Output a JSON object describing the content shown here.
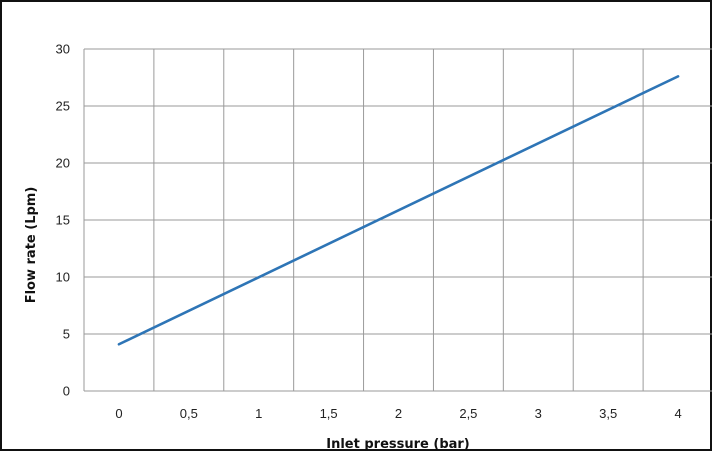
{
  "chart_data": {
    "type": "line",
    "title": "",
    "xlabel": "Inlet pressure (bar)",
    "ylabel": "Flow rate (Lpm)",
    "x_tick_labels": [
      "0",
      "0,5",
      "1",
      "1,5",
      "2",
      "2,5",
      "3",
      "3,5",
      "4"
    ],
    "y_tick_labels": [
      "0",
      "5",
      "10",
      "15",
      "20",
      "25",
      "30"
    ],
    "xlim": [
      -0.25,
      4.25
    ],
    "ylim": [
      0,
      30
    ],
    "grid": true,
    "legend": "none",
    "series": [
      {
        "x": [
          0,
          4
        ],
        "y": [
          4.1,
          27.6
        ],
        "color": "#2e75b6"
      }
    ]
  }
}
